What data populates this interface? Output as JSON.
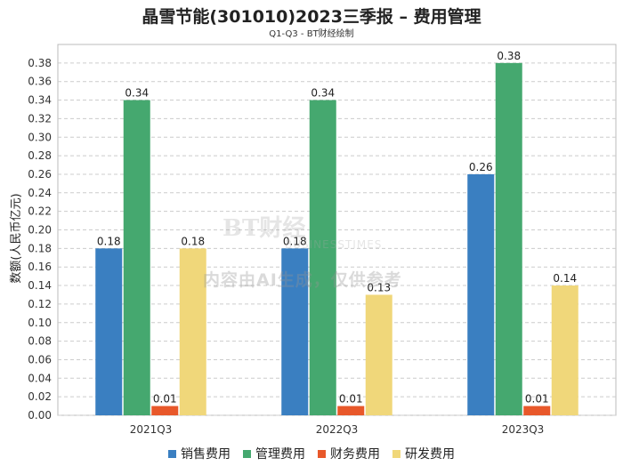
{
  "chart_data": {
    "type": "bar",
    "title": "晶雪节能(301010)2023三季报 – 费用管理",
    "subtitle": "Q1-Q3 - BT财经绘制",
    "ylabel": "数额(人民币亿元)",
    "xlabel": "",
    "categories": [
      "2021Q3",
      "2022Q3",
      "2023Q3"
    ],
    "ylim": [
      0,
      0.4
    ],
    "yticks": [
      "0.00",
      "0.02",
      "0.04",
      "0.06",
      "0.08",
      "0.10",
      "0.12",
      "0.14",
      "0.16",
      "0.18",
      "0.20",
      "0.22",
      "0.24",
      "0.26",
      "0.28",
      "0.30",
      "0.32",
      "0.34",
      "0.36",
      "0.38"
    ],
    "grid": true,
    "legend_position": "bottom",
    "series": [
      {
        "name": "销售费用",
        "color": "#3a7fc1",
        "values": [
          0.18,
          0.18,
          0.26
        ],
        "labels": [
          "0.18",
          "0.18",
          "0.26"
        ]
      },
      {
        "name": "管理费用",
        "color": "#45a86f",
        "values": [
          0.34,
          0.34,
          0.38
        ],
        "labels": [
          "0.34",
          "0.34",
          "0.38"
        ]
      },
      {
        "name": "财务费用",
        "color": "#e8582a",
        "values": [
          0.01,
          0.01,
          0.01
        ],
        "labels": [
          "0.01",
          "0.01",
          "0.01"
        ]
      },
      {
        "name": "研发费用",
        "color": "#f0d77a",
        "values": [
          0.18,
          0.13,
          0.14
        ],
        "labels": [
          "0.18",
          "0.13",
          "0.14"
        ]
      }
    ]
  },
  "watermark": {
    "logo": "BT财经",
    "logo_sub": "BUSINESSTIMES",
    "text": "内容由AI生成，仅供参考"
  }
}
